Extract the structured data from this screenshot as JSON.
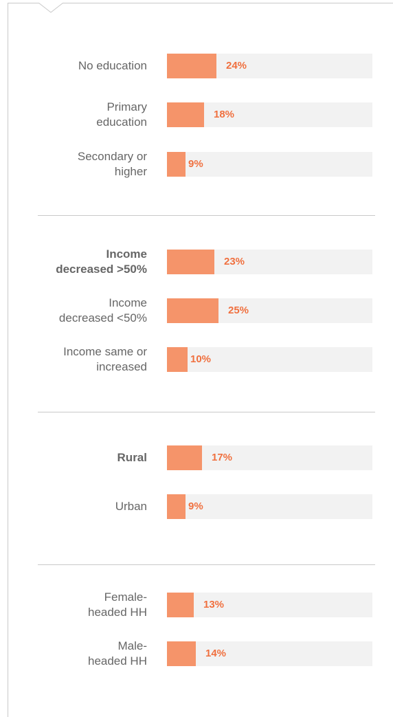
{
  "chart_data": {
    "type": "bar",
    "orientation": "horizontal",
    "value_unit": "%",
    "xlim": [
      0,
      100
    ],
    "colors": {
      "bar": "#f5946a",
      "track": "#f2f2f2",
      "value_text": "#f0703f",
      "label_text": "#666666"
    },
    "groups": [
      {
        "bars": [
          {
            "label": "No education",
            "bold": false,
            "value": 24,
            "value_label": "24%"
          },
          {
            "label": "Primary\neducation",
            "bold": false,
            "value": 18,
            "value_label": "18%"
          },
          {
            "label": "Secondary or\nhigher",
            "bold": false,
            "value": 9,
            "value_label": "9%"
          }
        ]
      },
      {
        "bars": [
          {
            "label": "Income\ndecreased >50%",
            "bold": true,
            "value": 23,
            "value_label": "23%"
          },
          {
            "label": "Income\ndecreased <50%",
            "bold": false,
            "value": 25,
            "value_label": "25%"
          },
          {
            "label": "Income same or\nincreased",
            "bold": false,
            "value": 10,
            "value_label": "10%"
          }
        ]
      },
      {
        "bars": [
          {
            "label": "Rural",
            "bold": true,
            "value": 17,
            "value_label": "17%"
          },
          {
            "label": "Urban",
            "bold": false,
            "value": 9,
            "value_label": "9%"
          }
        ]
      },
      {
        "bars": [
          {
            "label": "Female-\nheaded HH",
            "bold": false,
            "value": 13,
            "value_label": "13%"
          },
          {
            "label": "Male-\nheaded HH",
            "bold": false,
            "value": 14,
            "value_label": "14%"
          }
        ]
      }
    ]
  }
}
